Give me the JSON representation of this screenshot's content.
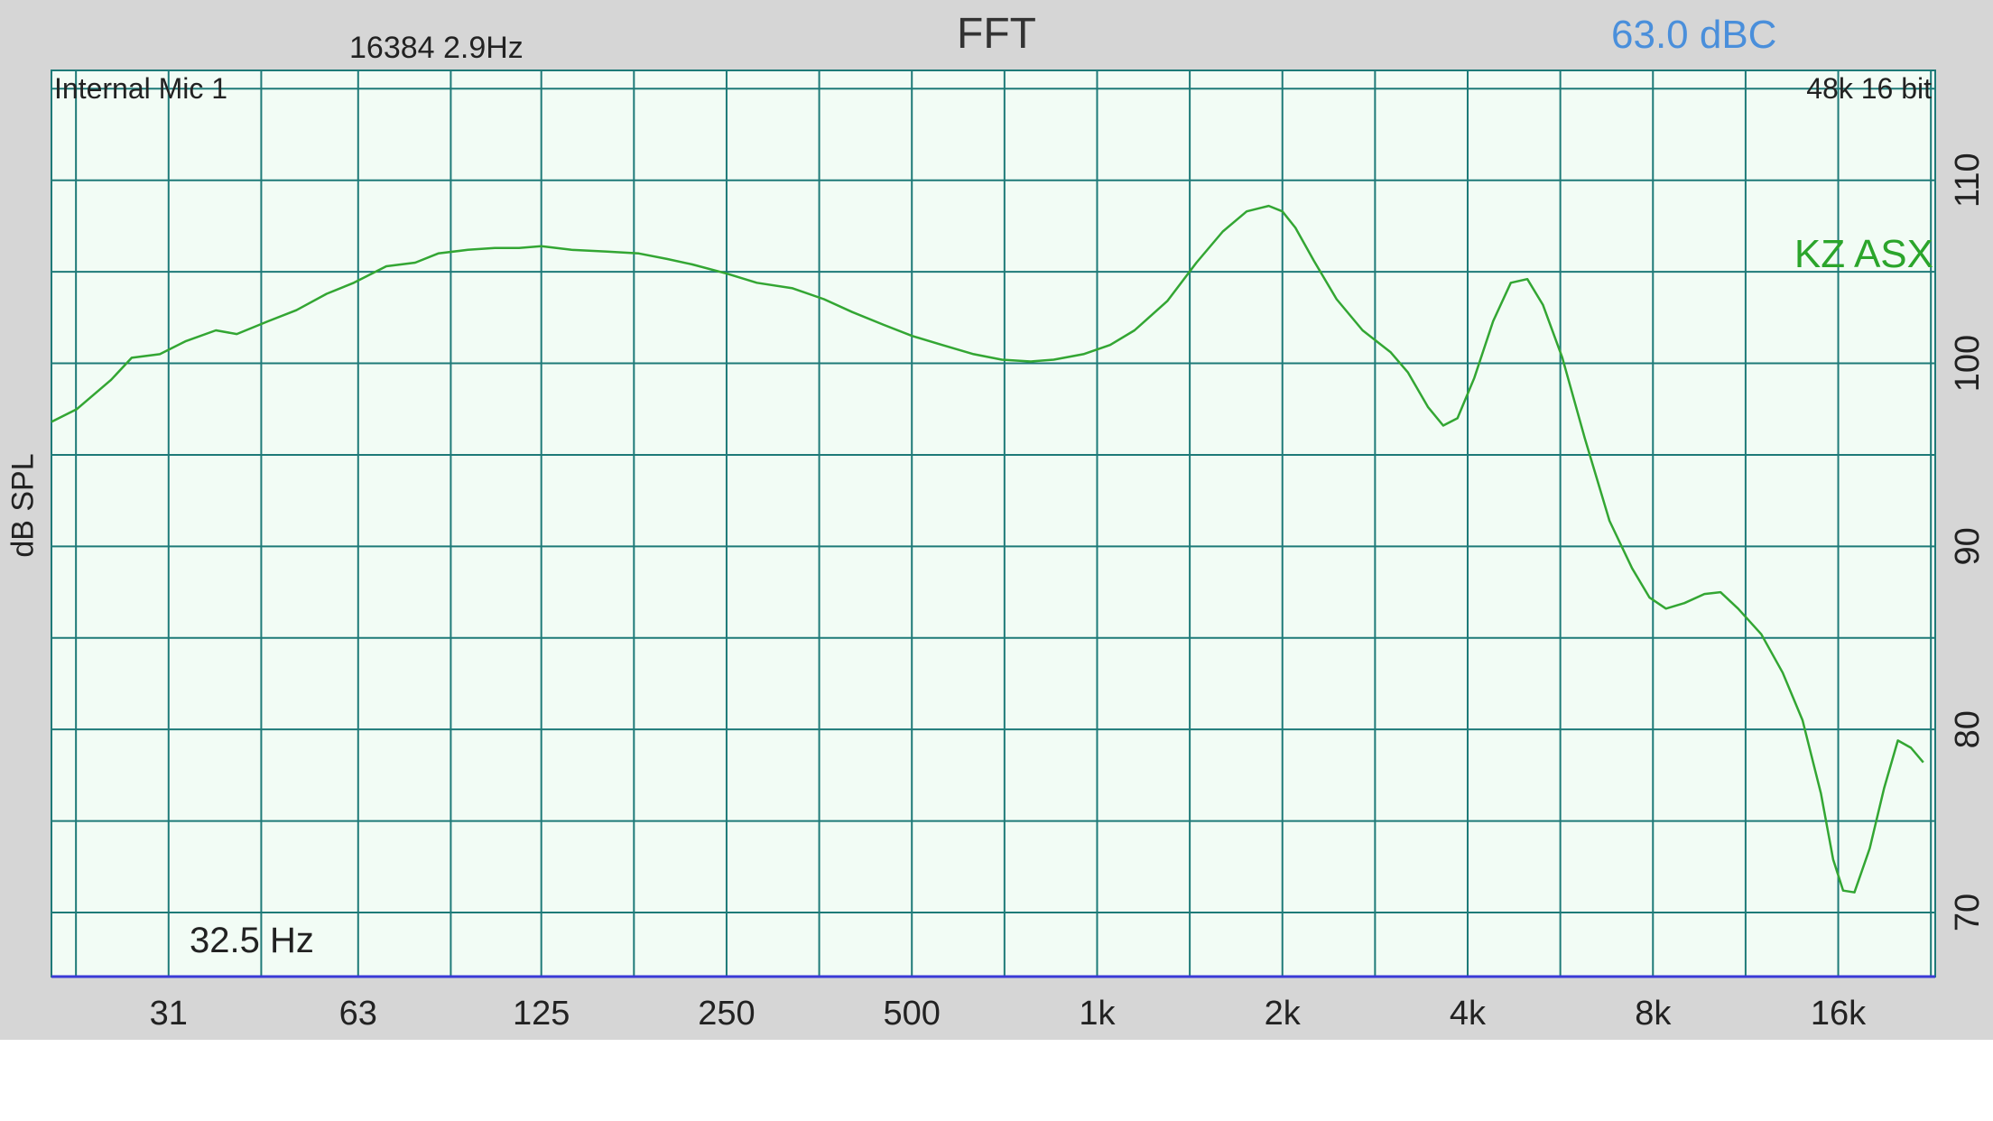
{
  "header": {
    "title": "FFT",
    "fft_info": "16384  2.9Hz",
    "level": "63.0 dBC"
  },
  "overlay": {
    "input_device": "Internal Mic 1",
    "format": "48k 16 bit",
    "cursor_readout": "32.5 Hz"
  },
  "colors": {
    "background": "#d6d6d6",
    "plot_bg": "#f2fcf5",
    "grid": "#1e7a78",
    "curve": "#33a633",
    "series_label": "#2ba52b",
    "level_text": "#4a8fdb",
    "baseline": "#3a3ad6"
  },
  "chart_data": {
    "type": "line",
    "title": "FFT",
    "xlabel": "",
    "ylabel": "dB SPL",
    "x_scale": "log",
    "xlim": [
      20,
      23000
    ],
    "ylim": [
      66.5,
      116
    ],
    "x_ticks": [
      {
        "value": 31,
        "label": "31"
      },
      {
        "value": 63,
        "label": "63"
      },
      {
        "value": 125,
        "label": "125"
      },
      {
        "value": 250,
        "label": "250"
      },
      {
        "value": 500,
        "label": "500"
      },
      {
        "value": 1000,
        "label": "1k"
      },
      {
        "value": 2000,
        "label": "2k"
      },
      {
        "value": 4000,
        "label": "4k"
      },
      {
        "value": 8000,
        "label": "8k"
      },
      {
        "value": 16000,
        "label": "16k"
      }
    ],
    "y_ticks": [
      {
        "value": 70,
        "label": "70"
      },
      {
        "value": 80,
        "label": "80"
      },
      {
        "value": 90,
        "label": "90"
      },
      {
        "value": 100,
        "label": "100"
      },
      {
        "value": 110,
        "label": "110"
      }
    ],
    "grid": true,
    "series": [
      {
        "name": "KZ ASX",
        "x": [
          20,
          22,
          25,
          27,
          30,
          33,
          37,
          40,
          45,
          50,
          56,
          62,
          70,
          78,
          85,
          95,
          105,
          115,
          125,
          140,
          160,
          180,
          200,
          220,
          250,
          280,
          320,
          360,
          400,
          450,
          500,
          560,
          630,
          700,
          780,
          850,
          950,
          1050,
          1150,
          1300,
          1450,
          1600,
          1750,
          1900,
          2000,
          2100,
          2250,
          2450,
          2700,
          3000,
          3200,
          3450,
          3650,
          3850,
          4100,
          4400,
          4700,
          5000,
          5300,
          5700,
          6200,
          6800,
          7400,
          7900,
          8400,
          9000,
          9700,
          10300,
          11000,
          12000,
          13000,
          14000,
          15000,
          15700,
          16300,
          17000,
          18000,
          19000,
          20000,
          21000,
          22000
        ],
        "values": [
          96.8,
          97.5,
          99.1,
          100.3,
          100.5,
          101.2,
          101.8,
          101.6,
          102.3,
          102.9,
          103.8,
          104.4,
          105.3,
          105.5,
          106.0,
          106.2,
          106.3,
          106.3,
          106.4,
          106.2,
          106.1,
          106.0,
          105.7,
          105.4,
          104.9,
          104.4,
          104.1,
          103.5,
          102.8,
          102.1,
          101.5,
          101.0,
          100.5,
          100.2,
          100.1,
          100.2,
          100.5,
          101.0,
          101.8,
          103.4,
          105.5,
          107.2,
          108.3,
          108.6,
          108.3,
          107.4,
          105.6,
          103.5,
          101.8,
          100.6,
          99.5,
          97.6,
          96.6,
          97.0,
          99.2,
          102.3,
          104.4,
          104.6,
          103.2,
          100.3,
          95.9,
          91.4,
          88.8,
          87.2,
          86.6,
          86.9,
          87.4,
          87.5,
          86.6,
          85.2,
          83.1,
          80.5,
          76.5,
          72.9,
          71.2,
          71.1,
          73.5,
          76.8,
          79.4,
          79.0,
          78.2
        ]
      }
    ]
  }
}
